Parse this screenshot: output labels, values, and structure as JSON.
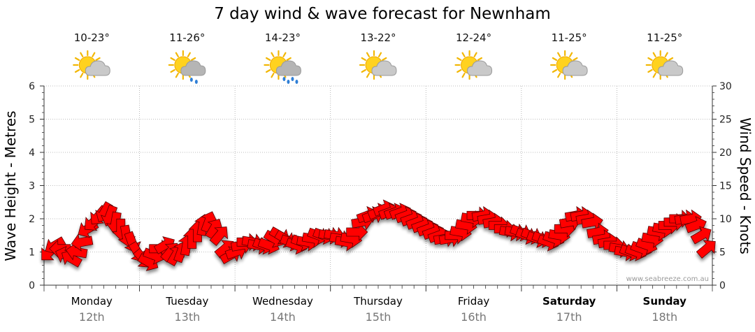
{
  "chart_data": {
    "type": "wind-arrow-chart",
    "title": "7 day wind & wave forecast for Newnham",
    "ylabel_left": "Wave Height - Metres",
    "ylabel_right": "Wind Speed - Knots",
    "ylim_left": [
      0,
      6
    ],
    "ylim_right": [
      0,
      30
    ],
    "yticks_left": [
      "0",
      "1",
      "2",
      "3",
      "4",
      "5",
      "6"
    ],
    "yticks_right": [
      "0",
      "5",
      "10",
      "15",
      "20",
      "25",
      "30"
    ],
    "grid": true,
    "watermark": "www.seabreeze.com.au",
    "days": [
      {
        "name": "Monday",
        "date": "12th",
        "bold": false,
        "temp": "10-23°",
        "icon": "partly-cloudy-icon"
      },
      {
        "name": "Tuesday",
        "date": "13th",
        "bold": false,
        "temp": "11-26°",
        "icon": "showers-icon"
      },
      {
        "name": "Wednesday",
        "date": "14th",
        "bold": false,
        "temp": "14-23°",
        "icon": "rain-icon"
      },
      {
        "name": "Thursday",
        "date": "15th",
        "bold": false,
        "temp": "13-22°",
        "icon": "partly-cloudy-icon"
      },
      {
        "name": "Friday",
        "date": "16th",
        "bold": false,
        "temp": "12-24°",
        "icon": "partly-cloudy-icon"
      },
      {
        "name": "Saturday",
        "date": "17th",
        "bold": true,
        "temp": "11-25°",
        "icon": "partly-cloudy-icon"
      },
      {
        "name": "Sunday",
        "date": "18th",
        "bold": true,
        "temp": "11-25°",
        "icon": "partly-cloudy-icon"
      }
    ],
    "wind_series": {
      "name": "Wind Speed",
      "color": "#ff0000",
      "unit": "knots",
      "values": [
        [
          5,
          45
        ],
        [
          6,
          60
        ],
        [
          5.5,
          90
        ],
        [
          4.5,
          110
        ],
        [
          4,
          120
        ],
        [
          5,
          100
        ],
        [
          6.5,
          80
        ],
        [
          8.5,
          60
        ],
        [
          9.5,
          50
        ],
        [
          10.5,
          40
        ],
        [
          11,
          30
        ],
        [
          10.5,
          20
        ],
        [
          9.5,
          10
        ],
        [
          8.5,
          0
        ],
        [
          7.5,
          350
        ],
        [
          6.5,
          340
        ],
        [
          5,
          330
        ],
        [
          4,
          320
        ],
        [
          3.5,
          300
        ],
        [
          4.5,
          290
        ],
        [
          5.5,
          270
        ],
        [
          6,
          240
        ],
        [
          5,
          220
        ],
        [
          4.5,
          210
        ],
        [
          5,
          200
        ],
        [
          6,
          190
        ],
        [
          7,
          180
        ],
        [
          8,
          180
        ],
        [
          9,
          190
        ],
        [
          9.5,
          200
        ],
        [
          8.5,
          210
        ],
        [
          7.5,
          220
        ],
        [
          5.5,
          230
        ],
        [
          4.5,
          240
        ],
        [
          5,
          250
        ],
        [
          6,
          260
        ],
        [
          6.5,
          270
        ],
        [
          6.5,
          280
        ],
        [
          6,
          280
        ],
        [
          6,
          290
        ],
        [
          6,
          290
        ],
        [
          7,
          300
        ],
        [
          7.5,
          300
        ],
        [
          7,
          300
        ],
        [
          6.5,
          290
        ],
        [
          6,
          290
        ],
        [
          6.5,
          290
        ],
        [
          6.5,
          280
        ],
        [
          7,
          280
        ],
        [
          7.5,
          290
        ],
        [
          7.5,
          290
        ],
        [
          7.5,
          280
        ],
        [
          7.5,
          280
        ],
        [
          7,
          280
        ],
        [
          6.5,
          280
        ],
        [
          7,
          280
        ],
        [
          8,
          270
        ],
        [
          9.5,
          260
        ],
        [
          10.5,
          250
        ],
        [
          10.5,
          250
        ],
        [
          11,
          250
        ],
        [
          11.5,
          250
        ],
        [
          11,
          250
        ],
        [
          11,
          250
        ],
        [
          11,
          250
        ],
        [
          10.5,
          250
        ],
        [
          10,
          250
        ],
        [
          9.5,
          250
        ],
        [
          9,
          250
        ],
        [
          8.5,
          250
        ],
        [
          8,
          250
        ],
        [
          7.5,
          250
        ],
        [
          7,
          260
        ],
        [
          7,
          260
        ],
        [
          7.5,
          270
        ],
        [
          8,
          280
        ],
        [
          9,
          280
        ],
        [
          10,
          280
        ],
        [
          10.5,
          270
        ],
        [
          10.5,
          260
        ],
        [
          10,
          260
        ],
        [
          9.5,
          260
        ],
        [
          9,
          270
        ],
        [
          8.5,
          270
        ],
        [
          8,
          280
        ],
        [
          8,
          280
        ],
        [
          8,
          290
        ],
        [
          7.5,
          290
        ],
        [
          7.5,
          290
        ],
        [
          7,
          290
        ],
        [
          7,
          290
        ],
        [
          6.5,
          290
        ],
        [
          7,
          290
        ],
        [
          7.5,
          280
        ],
        [
          8.5,
          270
        ],
        [
          9.5,
          260
        ],
        [
          10.5,
          260
        ],
        [
          10.5,
          260
        ],
        [
          10,
          260
        ],
        [
          9.5,
          260
        ],
        [
          8,
          260
        ],
        [
          7,
          260
        ],
        [
          6.5,
          260
        ],
        [
          6,
          270
        ],
        [
          5.5,
          280
        ],
        [
          5,
          280
        ],
        [
          5,
          290
        ],
        [
          5,
          290
        ],
        [
          5.5,
          290
        ],
        [
          6,
          290
        ],
        [
          7,
          280
        ],
        [
          8,
          280
        ],
        [
          8.5,
          280
        ],
        [
          9,
          270
        ],
        [
          9.5,
          270
        ],
        [
          10,
          270
        ],
        [
          10,
          260
        ],
        [
          10,
          260
        ],
        [
          9,
          250
        ],
        [
          7.5,
          240
        ],
        [
          5.5,
          230
        ]
      ]
    }
  }
}
